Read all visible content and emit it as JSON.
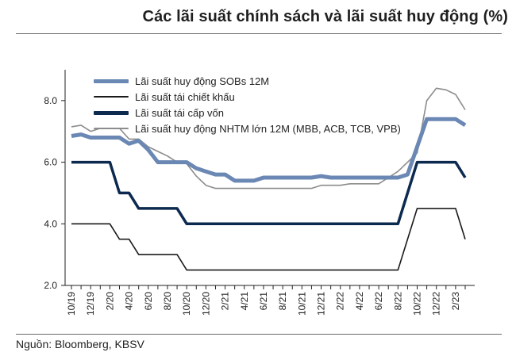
{
  "title": "Các lãi suất chính sách và lãi suất huy động (%)",
  "source": "Nguồn: Bloomberg, KBSV",
  "chart_data": {
    "type": "line",
    "title": "Các lãi suất chính sách và lãi suất huy động (%)",
    "xlabel": "",
    "ylabel": "",
    "ylim": [
      2.0,
      9.0
    ],
    "yticks": [
      "2.0",
      "4.0",
      "6.0",
      "8.0"
    ],
    "grid": false,
    "legend_position": "top-left",
    "x_tick_labels": [
      "10/19",
      "12/19",
      "2/20",
      "4/20",
      "6/20",
      "8/20",
      "10/20",
      "12/20",
      "2/21",
      "4/21",
      "6/21",
      "8/21",
      "10/21",
      "12/21",
      "2/22",
      "4/22",
      "6/22",
      "8/22",
      "10/22",
      "12/22",
      "2/23"
    ],
    "x": [
      "10/19",
      "11/19",
      "12/19",
      "1/20",
      "2/20",
      "3/20",
      "4/20",
      "5/20",
      "6/20",
      "7/20",
      "8/20",
      "9/20",
      "10/20",
      "11/20",
      "12/20",
      "1/21",
      "2/21",
      "3/21",
      "4/21",
      "5/21",
      "6/21",
      "7/21",
      "8/21",
      "9/21",
      "10/21",
      "11/21",
      "12/21",
      "1/22",
      "2/22",
      "3/22",
      "4/22",
      "5/22",
      "6/22",
      "7/22",
      "8/22",
      "9/22",
      "10/22",
      "11/22",
      "12/22",
      "1/23",
      "2/23",
      "3/23"
    ],
    "series": [
      {
        "name": "Lãi suất huy động SOBs 12M",
        "color": "#6b87b4",
        "values": [
          6.85,
          6.9,
          6.8,
          6.8,
          6.8,
          6.8,
          6.6,
          6.7,
          6.4,
          6.0,
          6.0,
          6.0,
          6.0,
          5.8,
          5.7,
          5.6,
          5.6,
          5.4,
          5.4,
          5.4,
          5.5,
          5.5,
          5.5,
          5.5,
          5.5,
          5.5,
          5.55,
          5.5,
          5.5,
          5.5,
          5.5,
          5.5,
          5.5,
          5.5,
          5.5,
          5.6,
          6.5,
          7.4,
          7.4,
          7.4,
          7.4,
          7.2
        ]
      },
      {
        "name": "Lãi suất tái chiết khấu",
        "color": "#1a1a1a",
        "values": [
          4.0,
          4.0,
          4.0,
          4.0,
          4.0,
          3.5,
          3.5,
          3.0,
          3.0,
          3.0,
          3.0,
          3.0,
          2.5,
          2.5,
          2.5,
          2.5,
          2.5,
          2.5,
          2.5,
          2.5,
          2.5,
          2.5,
          2.5,
          2.5,
          2.5,
          2.5,
          2.5,
          2.5,
          2.5,
          2.5,
          2.5,
          2.5,
          2.5,
          2.5,
          2.5,
          3.5,
          4.5,
          4.5,
          4.5,
          4.5,
          4.5,
          3.5
        ]
      },
      {
        "name": "Lãi suất tái cấp vốn",
        "color": "#0c2a4f",
        "values": [
          6.0,
          6.0,
          6.0,
          6.0,
          6.0,
          5.0,
          5.0,
          4.5,
          4.5,
          4.5,
          4.5,
          4.5,
          4.0,
          4.0,
          4.0,
          4.0,
          4.0,
          4.0,
          4.0,
          4.0,
          4.0,
          4.0,
          4.0,
          4.0,
          4.0,
          4.0,
          4.0,
          4.0,
          4.0,
          4.0,
          4.0,
          4.0,
          4.0,
          4.0,
          4.0,
          5.0,
          6.0,
          6.0,
          6.0,
          6.0,
          6.0,
          5.5
        ]
      },
      {
        "name": "Lãi suất huy động NHTM lớn 12M (MBB, ACB, TCB, VPB)",
        "color": "#8c8c8c",
        "values": [
          7.15,
          7.2,
          7.0,
          7.1,
          7.1,
          7.1,
          6.75,
          6.75,
          6.5,
          6.35,
          6.2,
          6.0,
          5.95,
          5.55,
          5.25,
          5.15,
          5.15,
          5.15,
          5.15,
          5.15,
          5.15,
          5.15,
          5.15,
          5.15,
          5.15,
          5.15,
          5.25,
          5.25,
          5.25,
          5.3,
          5.3,
          5.3,
          5.3,
          5.5,
          5.7,
          6.0,
          6.3,
          8.0,
          8.4,
          8.35,
          8.2,
          7.7
        ]
      }
    ]
  }
}
